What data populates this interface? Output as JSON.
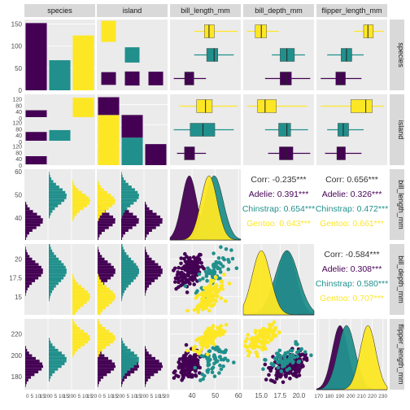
{
  "chart_data": {
    "type": "pairs",
    "variables": [
      "species",
      "island",
      "bill_length_mm",
      "bill_depth_mm",
      "flipper_length_mm"
    ],
    "species_levels": [
      "Adelie",
      "Chinstrap",
      "Gentoo"
    ],
    "island_levels": [
      "Biscoe",
      "Dream",
      "Torgersen"
    ],
    "colors": {
      "Adelie": "#440154",
      "Chinstrap": "#21908C",
      "Gentoo": "#FDE725"
    },
    "species_counts": {
      "Adelie": 152,
      "Chinstrap": 68,
      "Gentoo": 124
    },
    "island_species_counts": {
      "Biscoe": {
        "Adelie": 44,
        "Chinstrap": 0,
        "Gentoo": 124
      },
      "Dream": {
        "Adelie": 56,
        "Chinstrap": 68,
        "Gentoo": 0
      },
      "Torgersen": {
        "Adelie": 52,
        "Chinstrap": 0,
        "Gentoo": 0
      }
    },
    "boxplots_by_species": {
      "bill_length_mm": {
        "Adelie": [
          32.1,
          36.8,
          38.8,
          40.8,
          46.0
        ],
        "Chinstrap": [
          40.9,
          46.3,
          49.5,
          51.1,
          58.0
        ],
        "Gentoo": [
          40.9,
          45.3,
          47.3,
          49.6,
          59.6
        ]
      },
      "bill_depth_mm": {
        "Adelie": [
          15.5,
          17.5,
          18.4,
          19.0,
          21.5
        ],
        "Chinstrap": [
          16.4,
          17.5,
          18.4,
          19.4,
          20.8
        ],
        "Gentoo": [
          13.1,
          14.2,
          15.0,
          15.7,
          17.3
        ]
      },
      "flipper_length_mm": {
        "Adelie": [
          172,
          186,
          190,
          195,
          210
        ],
        "Chinstrap": [
          178,
          191,
          196,
          201,
          212
        ],
        "Gentoo": [
          203,
          212,
          216,
          221,
          231
        ]
      }
    },
    "boxplots_by_island": {
      "bill_length_mm": {
        "Biscoe": [
          34.5,
          42.0,
          45.8,
          48.7,
          59.6
        ],
        "Dream": [
          32.1,
          39.2,
          44.7,
          49.8,
          58.0
        ],
        "Torgersen": [
          33.5,
          36.7,
          38.9,
          41.1,
          46.0
        ]
      },
      "bill_depth_mm": {
        "Biscoe": [
          13.1,
          14.5,
          15.5,
          17.0,
          21.1
        ],
        "Dream": [
          15.5,
          17.3,
          18.4,
          18.9,
          21.2
        ],
        "Torgersen": [
          15.9,
          17.4,
          18.4,
          19.2,
          21.5
        ]
      },
      "flipper_length_mm": {
        "Biscoe": [
          172,
          200,
          214,
          220,
          231
        ],
        "Dream": [
          178,
          188,
          193,
          198,
          212
        ],
        "Torgersen": [
          176,
          187,
          191,
          195,
          210
        ]
      }
    },
    "correlations": {
      "bill_length_mm~bill_depth_mm": {
        "Corr": "-0.235***",
        "Adelie": "0.391***",
        "Chinstrap": "0.654***",
        "Gentoo": "0.643***"
      },
      "bill_length_mm~flipper_length_mm": {
        "Corr": "0.656***",
        "Adelie": "0.326***",
        "Chinstrap": "0.472***",
        "Gentoo": "0.661***"
      },
      "bill_depth_mm~flipper_length_mm": {
        "Corr": "-0.584***",
        "Adelie": "0.308***",
        "Chinstrap": "0.580***",
        "Gentoo": "0.707***"
      }
    },
    "axes": {
      "species_count_ticks": [
        0,
        50,
        100,
        150
      ],
      "island_count_ticks": [
        0,
        20,
        40,
        60,
        80,
        100,
        120
      ],
      "bill_length_mm_ticks": [
        40,
        50,
        60
      ],
      "bill_depth_mm_ticks": [
        15.0,
        17.5,
        20.0
      ],
      "flipper_length_mm_ticks": [
        170,
        180,
        190,
        200,
        210,
        220,
        230
      ],
      "bill_length_y_ticks": [
        40,
        50,
        60
      ],
      "bill_depth_y_ticks": [
        15.0,
        17.5,
        20.0
      ],
      "flipper_y_ticks": [
        180,
        200,
        220
      ],
      "hist_count_ticks": [
        "0",
        "5",
        "10",
        "15",
        "20"
      ]
    }
  }
}
